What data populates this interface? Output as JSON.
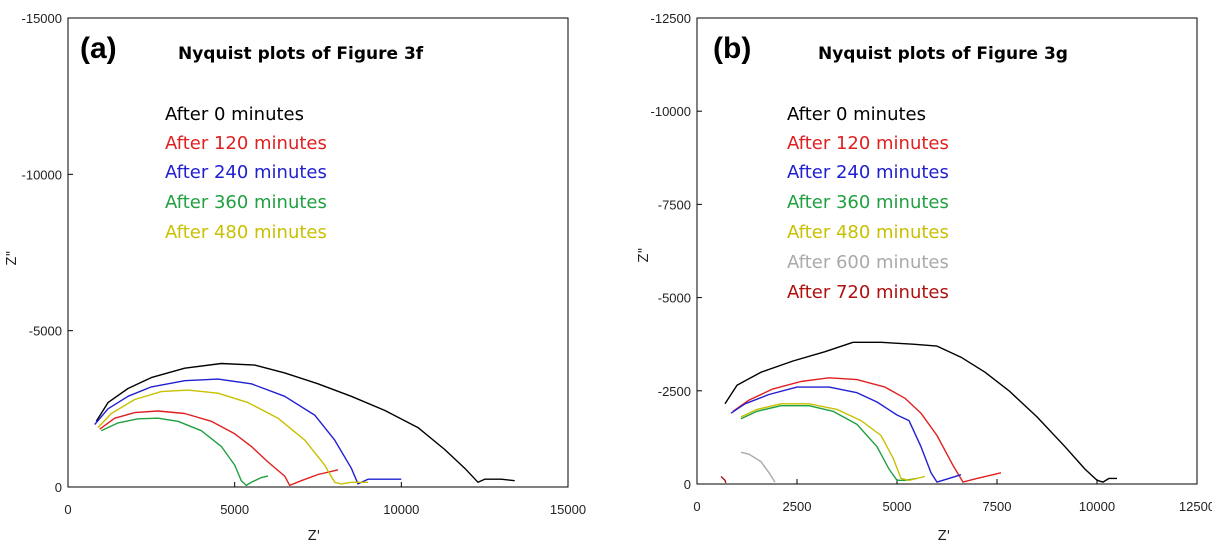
{
  "chart_data": [
    {
      "type": "line",
      "panel_label": "(a)",
      "title": "Nyquist plots of Figure 3f",
      "xlabel": "Z'",
      "ylabel": "Z\"",
      "xlim": [
        0,
        15000
      ],
      "ylim": [
        0,
        -15000
      ],
      "xticks": [
        0,
        5000,
        10000,
        15000
      ],
      "yticks": [
        0,
        -5000,
        -10000,
        -15000
      ],
      "xtick_labels": [
        "0",
        "5000",
        "10000",
        "15000"
      ],
      "ytick_labels": [
        "0",
        "-5000",
        "-10000",
        "-15000"
      ],
      "grid": false,
      "legend_position": "upper-center",
      "series": [
        {
          "name": "After 0 minutes",
          "color": "#000000",
          "x": [
            850,
            1200,
            1800,
            2500,
            3500,
            4600,
            5600,
            6500,
            7500,
            8500,
            9500,
            10500,
            11300,
            11900,
            12300,
            12500,
            13000,
            13400
          ],
          "y": [
            -2100,
            -2700,
            -3150,
            -3500,
            -3800,
            -3950,
            -3900,
            -3650,
            -3300,
            -2900,
            -2450,
            -1900,
            -1200,
            -600,
            -150,
            -250,
            -250,
            -200
          ]
        },
        {
          "name": "After 120 minutes",
          "color": "#e02020",
          "x": [
            950,
            1400,
            2000,
            2700,
            3500,
            4300,
            5000,
            5500,
            6000,
            6500,
            6650,
            7000,
            7500,
            7900,
            8100
          ],
          "y": [
            -1850,
            -2200,
            -2380,
            -2430,
            -2350,
            -2100,
            -1700,
            -1300,
            -800,
            -350,
            -50,
            -200,
            -400,
            -500,
            -550
          ]
        },
        {
          "name": "After 240 minutes",
          "color": "#2020d0",
          "x": [
            800,
            1200,
            1800,
            2500,
            3500,
            4500,
            5500,
            6500,
            7400,
            8000,
            8500,
            8700,
            9000,
            9500,
            10000
          ],
          "y": [
            -2000,
            -2500,
            -2900,
            -3200,
            -3400,
            -3450,
            -3300,
            -2900,
            -2300,
            -1500,
            -600,
            -100,
            -250,
            -250,
            -250
          ]
        },
        {
          "name": "After 360 minutes",
          "color": "#20a040",
          "x": [
            1000,
            1500,
            2100,
            2700,
            3300,
            4000,
            4600,
            5000,
            5200,
            5350,
            5500,
            5800,
            6000
          ],
          "y": [
            -1800,
            -2050,
            -2180,
            -2200,
            -2100,
            -1800,
            -1300,
            -700,
            -200,
            -50,
            -150,
            -300,
            -350
          ]
        },
        {
          "name": "After 480 minutes",
          "color": "#c8c000",
          "x": [
            900,
            1300,
            2000,
            2800,
            3600,
            4500,
            5400,
            6300,
            7100,
            7700,
            8000,
            8200,
            8500,
            9000
          ],
          "y": [
            -1900,
            -2350,
            -2800,
            -3050,
            -3100,
            -3000,
            -2700,
            -2200,
            -1500,
            -700,
            -150,
            -100,
            -150,
            -150
          ]
        }
      ]
    },
    {
      "type": "line",
      "panel_label": "(b)",
      "title": "Nyquist plots of Figure 3g",
      "xlabel": "Z'",
      "ylabel": "Z\"",
      "xlim": [
        0,
        12500
      ],
      "ylim": [
        0,
        -12500
      ],
      "xticks": [
        0,
        2500,
        5000,
        7500,
        10000,
        12500
      ],
      "yticks": [
        0,
        -2500,
        -5000,
        -7500,
        -10000,
        -12500
      ],
      "xtick_labels": [
        "0",
        "2500",
        "5000",
        "7500",
        "10000",
        "12500"
      ],
      "ytick_labels": [
        "0",
        "-2500",
        "-5000",
        "-7500",
        "-10000",
        "-12500"
      ],
      "grid": false,
      "legend_position": "upper-center",
      "series": [
        {
          "name": "After 0 minutes",
          "color": "#000000",
          "x": [
            700,
            1000,
            1600,
            2400,
            3200,
            3900,
            4600,
            5400,
            6000,
            6600,
            7200,
            7800,
            8500,
            9200,
            9700,
            10000,
            10150,
            10300,
            10500
          ],
          "y": [
            -2150,
            -2650,
            -3000,
            -3300,
            -3550,
            -3800,
            -3800,
            -3750,
            -3700,
            -3400,
            -3000,
            -2500,
            -1800,
            -1000,
            -400,
            -100,
            -50,
            -150,
            -150
          ]
        },
        {
          "name": "After 120 minutes",
          "color": "#e02020",
          "x": [
            900,
            1300,
            1900,
            2600,
            3300,
            4000,
            4700,
            5200,
            5600,
            6000,
            6400,
            6650,
            7000,
            7400,
            7600
          ],
          "y": [
            -1950,
            -2250,
            -2550,
            -2750,
            -2850,
            -2800,
            -2600,
            -2300,
            -1900,
            -1300,
            -500,
            -50,
            -150,
            -250,
            -300
          ]
        },
        {
          "name": "After 240 minutes",
          "color": "#2020d0",
          "x": [
            850,
            1200,
            1800,
            2500,
            3300,
            4000,
            4500,
            5000,
            5300,
            5600,
            5850,
            6000,
            6300,
            6600
          ],
          "y": [
            -1900,
            -2150,
            -2400,
            -2600,
            -2600,
            -2450,
            -2200,
            -1850,
            -1700,
            -1000,
            -300,
            -50,
            -150,
            -250
          ]
        },
        {
          "name": "After 360 minutes",
          "color": "#20a040",
          "x": [
            1100,
            1500,
            2100,
            2800,
            3400,
            4000,
            4500,
            4800,
            5000,
            5200,
            5500
          ],
          "y": [
            -1750,
            -1950,
            -2100,
            -2100,
            -1950,
            -1600,
            -1000,
            -400,
            -100,
            -100,
            -150
          ]
        },
        {
          "name": "After 480 minutes",
          "color": "#c8c000",
          "x": [
            1100,
            1500,
            2100,
            2800,
            3500,
            4100,
            4600,
            4900,
            5100,
            5300,
            5700
          ],
          "y": [
            -1800,
            -2000,
            -2150,
            -2150,
            -2000,
            -1700,
            -1300,
            -700,
            -150,
            -100,
            -200
          ]
        },
        {
          "name": "After 600 minutes",
          "color": "#aaaaaa",
          "x": [
            1100,
            1300,
            1600,
            1800,
            1950
          ],
          "y": [
            -850,
            -800,
            -600,
            -300,
            -50
          ]
        },
        {
          "name": "After 720 minutes",
          "color": "#b01010",
          "x": [
            600,
            700,
            720
          ],
          "y": [
            -200,
            -100,
            -30
          ]
        }
      ]
    }
  ]
}
